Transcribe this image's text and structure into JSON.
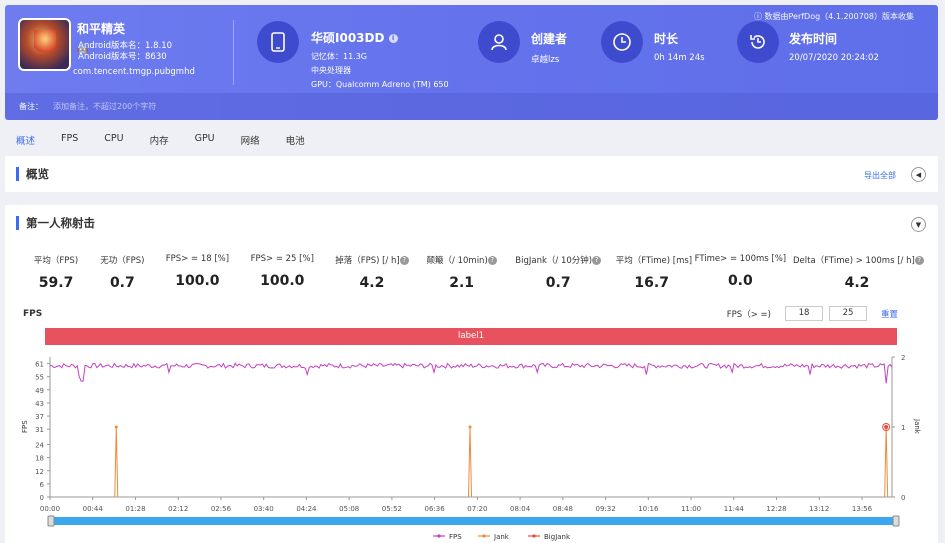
{
  "header": {
    "game_name": "和平精英",
    "android_version_label": "Android版本名：",
    "android_version": "1.8.10",
    "android_code_label": "Android版本号：",
    "android_code": "8630",
    "package": "com.tencent.tmgp.pubgmhd",
    "device_name": "华硕I003DD",
    "memory": "记忆体：11.3G",
    "cpu": "中央处理器",
    "gpu": "GPU：Qualcomm Adreno (TM) 650",
    "creator_title": "创建者",
    "creator_value": "卓越lzs",
    "duration_title": "时长",
    "duration_value": "0h 14m 24s",
    "publish_title": "发布时间",
    "publish_value": "20/07/2020 20:24:02",
    "perfdog": "数据由PerfDog（4.1.200708）版本收集",
    "note_label": "备注：",
    "note_placeholder": "添加备注，不超过200个字符"
  },
  "tabs": [
    "概述",
    "FPS",
    "CPU",
    "内存",
    "GPU",
    "网络",
    "电池"
  ],
  "overview": {
    "title": "概览",
    "export": "导出全部"
  },
  "section": {
    "title": "第一人称射击"
  },
  "metrics": [
    {
      "label": "平均（FPS)",
      "value": "59.7",
      "help": false
    },
    {
      "label": "无功（FPS)",
      "value": "0.7",
      "help": false
    },
    {
      "label": "FPS> = 18 [%]",
      "value": "100.0",
      "help": false
    },
    {
      "label": "FPS> = 25 [%]",
      "value": "100.0",
      "help": false
    },
    {
      "label": "掉落（FPS) [/ h]",
      "value": "4.2",
      "help": true
    },
    {
      "label": "颠簸（/ 10min)",
      "value": "2.1",
      "help": true
    },
    {
      "label": "BigJank（/ 10分钟)",
      "value": "0.7",
      "help": true
    },
    {
      "label": "平均（FTime) [ms]",
      "value": "16.7",
      "help": false
    },
    {
      "label": "FTime> = 100ms [%]",
      "value": "0.0",
      "help": false
    },
    {
      "label": "Delta（FTime) > 100ms [/ h]",
      "value": "4.2",
      "help": true
    }
  ],
  "fps_chart": {
    "title": "FPS",
    "threshold_label": "FPS（> =)",
    "threshold_1": "18",
    "threshold_2": "25",
    "reset": "重置",
    "label_bar": "label1"
  },
  "chart_data": {
    "type": "line",
    "ylabel": "FPS",
    "y2label": "Jank",
    "yticks": [
      0,
      6,
      12,
      18,
      24,
      31,
      37,
      43,
      49,
      55,
      61
    ],
    "y2ticks": [
      0,
      1,
      2
    ],
    "xticks": [
      "00:00",
      "00:44",
      "01:28",
      "02:12",
      "02:56",
      "03:40",
      "04:24",
      "05:08",
      "05:52",
      "06:36",
      "07:20",
      "08:04",
      "08:48",
      "09:32",
      "10:16",
      "11:00",
      "11:44",
      "12:28",
      "13:12",
      "13:56"
    ],
    "ylim": [
      0,
      61
    ],
    "y2lim": [
      0,
      2
    ],
    "duration_s": 864,
    "series": [
      {
        "name": "FPS",
        "color": "#c43fc1",
        "baseline": 60,
        "dips": [
          [
            30,
            55
          ],
          [
            33,
            53
          ],
          [
            122,
            57
          ],
          [
            264,
            56
          ],
          [
            394,
            57
          ],
          [
            500,
            57
          ],
          [
            612,
            56
          ],
          [
            700,
            57
          ],
          [
            780,
            56
          ],
          [
            858,
            52
          ]
        ]
      },
      {
        "name": "Jank",
        "color": "#f08a3a",
        "events_s": [
          68,
          431,
          858
        ]
      },
      {
        "name": "BigJank",
        "color": "#e84c3d",
        "events_s": [
          858
        ]
      }
    ]
  },
  "legend_colors": {
    "FPS": "#c43fc1",
    "Jank": "#f08a3a",
    "BigJank": "#e84c3d"
  },
  "colors": {
    "accent": "#3a6bf2",
    "header": "#6473ec",
    "label_bar": "#e8525f",
    "scroll": "#3ba8ee"
  }
}
